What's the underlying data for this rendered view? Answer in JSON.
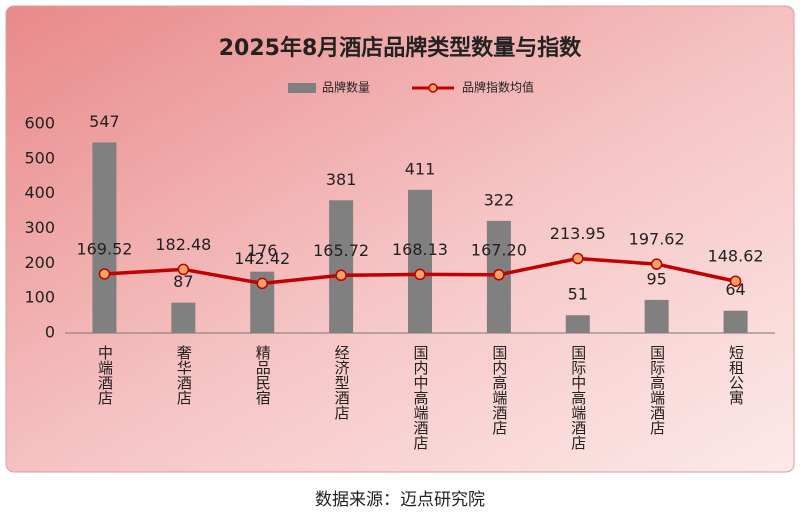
{
  "chart_data": {
    "type": "bar-line",
    "title": "2025年8月酒店品牌类型数量与指数",
    "categories": [
      "中端酒店",
      "奢华酒店",
      "精品民宿",
      "经济型酒店",
      "国内中高端酒店",
      "国内高端酒店",
      "国际中高端酒店",
      "国际高端酒店",
      "短租公寓"
    ],
    "series": [
      {
        "name": "品牌数量",
        "type": "bar",
        "color": "#808080",
        "values": [
          547,
          87,
          176,
          381,
          411,
          322,
          51,
          95,
          64
        ]
      },
      {
        "name": "品牌指数均值",
        "type": "line",
        "color": "#c00000",
        "marker_color": "#f4a460",
        "values": [
          169.52,
          182.48,
          142.42,
          165.72,
          168.13,
          167.2,
          213.95,
          197.62,
          148.62
        ],
        "value_labels": [
          "169.52",
          "182.48",
          "142.42",
          "165.72",
          "168.13",
          "167.20",
          "213.95",
          "197.62",
          "148.62"
        ]
      }
    ],
    "ylim": [
      0,
      600
    ],
    "yticks": [
      0,
      100,
      200,
      300,
      400,
      500,
      600
    ],
    "legend": "top",
    "source": "数据来源：迈点研究院"
  }
}
